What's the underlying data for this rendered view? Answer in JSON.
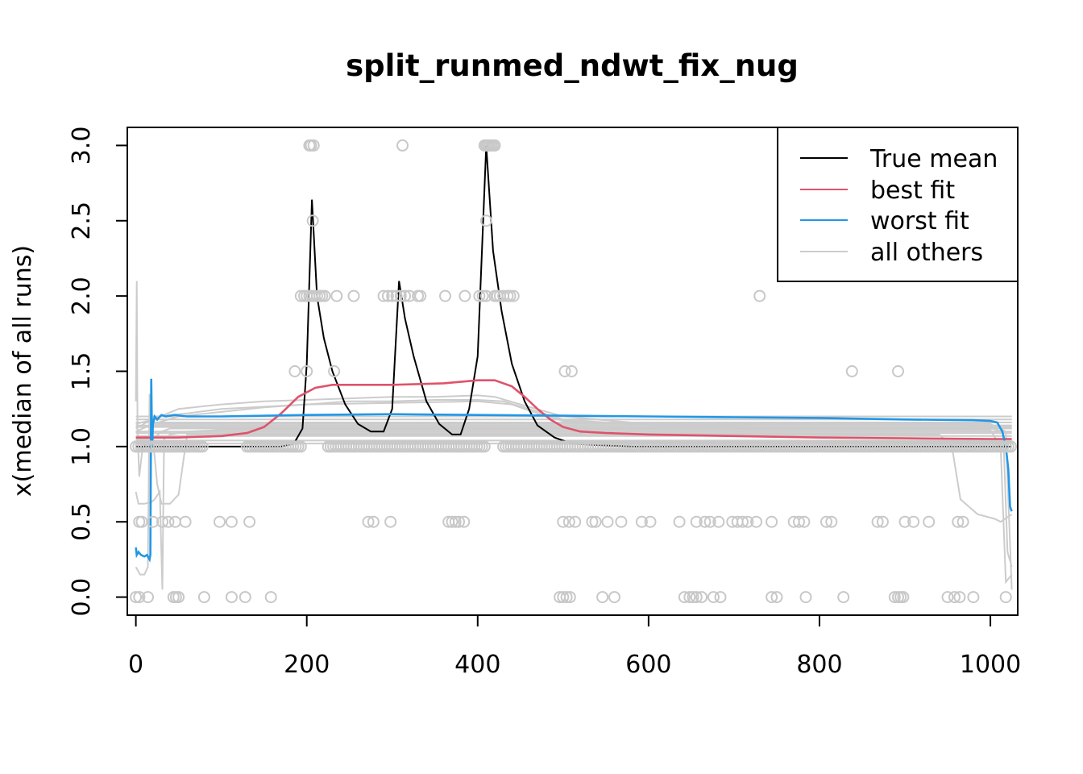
{
  "chart_data": {
    "type": "line",
    "title": "split_runmed_ndwt_fix_nug",
    "xlabel": "",
    "ylabel": "x(median of all runs)",
    "xlim": [
      -10,
      1032
    ],
    "ylim": [
      -0.12,
      3.12
    ],
    "x_ticks": [
      0,
      200,
      400,
      600,
      800,
      1000
    ],
    "y_ticks": [
      0.0,
      0.5,
      1.0,
      1.5,
      2.0,
      2.5,
      3.0
    ],
    "x_tick_labels": [
      "0",
      "200",
      "400",
      "600",
      "800",
      "1000"
    ],
    "y_tick_labels": [
      "0.0",
      "0.5",
      "1.0",
      "1.5",
      "2.0",
      "2.5",
      "3.0"
    ],
    "grid": false,
    "legend": {
      "position": "top-right",
      "entries": [
        {
          "label": "True mean",
          "color": "#000000"
        },
        {
          "label": "best fit",
          "color": "#DF536B"
        },
        {
          "label": "worst fit",
          "color": "#2297E6"
        },
        {
          "label": "all others",
          "color": "#CCCCCC"
        }
      ]
    },
    "colors": {
      "true_mean": "#000000",
      "best_fit": "#DF536B",
      "worst_fit": "#2297E6",
      "others": "#CCCCCC",
      "points": "#C8C8C8"
    },
    "series": [
      {
        "name": "True mean",
        "color": "#000000",
        "x": [
          0,
          170,
          185,
          195,
          200,
          206,
          212,
          220,
          230,
          245,
          260,
          275,
          290,
          300,
          308,
          315,
          325,
          340,
          355,
          370,
          380,
          390,
          400,
          410,
          418,
          428,
          440,
          455,
          470,
          490,
          510,
          540,
          580,
          700,
          1000,
          1025
        ],
        "y": [
          1.0,
          1.0,
          1.02,
          1.12,
          1.55,
          2.64,
          2.0,
          1.72,
          1.5,
          1.28,
          1.15,
          1.1,
          1.1,
          1.25,
          2.1,
          1.85,
          1.6,
          1.3,
          1.15,
          1.08,
          1.08,
          1.25,
          1.6,
          3.0,
          2.3,
          1.9,
          1.55,
          1.3,
          1.14,
          1.06,
          1.02,
          1.01,
          1.0,
          1.0,
          1.0,
          1.0
        ]
      },
      {
        "name": "best fit",
        "color": "#DF536B",
        "x": [
          0,
          50,
          100,
          130,
          150,
          170,
          190,
          210,
          230,
          260,
          300,
          330,
          360,
          380,
          400,
          420,
          440,
          455,
          470,
          485,
          500,
          520,
          550,
          600,
          700,
          800,
          900,
          1000,
          1025
        ],
        "y": [
          1.06,
          1.06,
          1.07,
          1.09,
          1.13,
          1.22,
          1.33,
          1.39,
          1.41,
          1.41,
          1.41,
          1.415,
          1.42,
          1.43,
          1.44,
          1.44,
          1.4,
          1.33,
          1.25,
          1.18,
          1.13,
          1.1,
          1.09,
          1.08,
          1.07,
          1.06,
          1.055,
          1.05,
          1.05
        ]
      },
      {
        "name": "worst fit",
        "color": "#2297E6",
        "x": [
          0,
          1,
          3,
          6,
          10,
          13,
          16,
          17,
          18,
          19,
          20,
          22,
          25,
          30,
          35,
          45,
          60,
          100,
          200,
          300,
          400,
          500,
          600,
          700,
          800,
          900,
          980,
          1000,
          1008,
          1014,
          1018,
          1021,
          1023,
          1025
        ],
        "y": [
          0.33,
          0.28,
          0.3,
          0.28,
          0.27,
          0.28,
          0.25,
          0.28,
          1.45,
          1.0,
          1.15,
          1.2,
          1.18,
          1.21,
          1.2,
          1.21,
          1.2,
          1.2,
          1.21,
          1.215,
          1.21,
          1.205,
          1.2,
          1.195,
          1.19,
          1.18,
          1.175,
          1.17,
          1.16,
          1.1,
          1.0,
          0.85,
          0.6,
          0.57
        ]
      }
    ],
    "others": [
      {
        "x": [
          0,
          1,
          2,
          4,
          8,
          20,
          30,
          40,
          60,
          100,
          200,
          300,
          400,
          500,
          700,
          900,
          1000,
          1015,
          1020,
          1025
        ],
        "y": [
          1.3,
          2.1,
          1.1,
          0.8,
          1.0,
          1.05,
          1.1,
          1.12,
          1.12,
          1.12,
          1.12,
          1.12,
          1.12,
          1.12,
          1.12,
          1.12,
          1.12,
          1.1,
          0.3,
          0.2
        ]
      },
      {
        "x": [
          0,
          3,
          10,
          18,
          22,
          28,
          31,
          33,
          40,
          60,
          100,
          200,
          300,
          400,
          500,
          700,
          900,
          1000,
          1012,
          1018,
          1025
        ],
        "y": [
          0.7,
          0.62,
          0.62,
          0.63,
          0.65,
          0.7,
          0.05,
          1.05,
          1.08,
          1.1,
          1.11,
          1.11,
          1.11,
          1.11,
          1.11,
          1.11,
          1.11,
          1.11,
          1.0,
          0.1,
          0.15
        ]
      },
      {
        "x": [
          0,
          5,
          10,
          14,
          16,
          20,
          30,
          60,
          100,
          200,
          300,
          400,
          500,
          700,
          900,
          1000,
          1018,
          1025
        ],
        "y": [
          0.2,
          0.15,
          0.15,
          0.2,
          1.35,
          1.15,
          1.15,
          1.15,
          1.15,
          1.15,
          1.15,
          1.15,
          1.15,
          1.15,
          1.15,
          1.15,
          1.1,
          0.05
        ]
      },
      {
        "x": [
          0,
          10,
          20,
          25,
          30,
          40,
          50,
          60,
          100,
          940,
          955,
          965,
          985,
          1005,
          1012,
          1025
        ],
        "y": [
          1.05,
          1.05,
          1.05,
          0.75,
          0.62,
          0.62,
          0.68,
          1.08,
          1.08,
          1.08,
          1.0,
          0.65,
          0.55,
          0.52,
          0.5,
          0.55
        ]
      },
      {
        "x": [
          0,
          20,
          50,
          100,
          150,
          200,
          250,
          300,
          350,
          400,
          420,
          450,
          500,
          600,
          700,
          800,
          900,
          1000,
          1025
        ],
        "y": [
          1.15,
          1.18,
          1.25,
          1.28,
          1.3,
          1.31,
          1.32,
          1.33,
          1.33,
          1.34,
          1.33,
          1.28,
          1.2,
          1.15,
          1.13,
          1.12,
          1.12,
          1.12,
          1.12
        ]
      },
      {
        "x": [
          0,
          20,
          50,
          100,
          150,
          200,
          250,
          300,
          350,
          400,
          430,
          460,
          500,
          600,
          700,
          800,
          900,
          1000,
          1025
        ],
        "y": [
          1.1,
          1.15,
          1.2,
          1.23,
          1.26,
          1.28,
          1.3,
          1.3,
          1.31,
          1.31,
          1.3,
          1.25,
          1.18,
          1.14,
          1.13,
          1.12,
          1.12,
          1.12,
          1.12
        ]
      },
      {
        "x": [
          0,
          25,
          60,
          100,
          200,
          300,
          400,
          440,
          470,
          500,
          600,
          1000,
          1025
        ],
        "y": [
          1.12,
          1.2,
          1.22,
          1.25,
          1.28,
          1.29,
          1.3,
          1.28,
          1.22,
          1.17,
          1.15,
          1.14,
          1.14
        ]
      },
      {
        "x": [
          0,
          1025
        ],
        "y": [
          1.2,
          1.2
        ]
      },
      {
        "x": [
          0,
          1025
        ],
        "y": [
          1.18,
          1.18
        ]
      },
      {
        "x": [
          0,
          1025
        ],
        "y": [
          1.16,
          1.16
        ]
      },
      {
        "x": [
          0,
          1025
        ],
        "y": [
          1.14,
          1.14
        ]
      },
      {
        "x": [
          0,
          1025
        ],
        "y": [
          1.13,
          1.13
        ]
      },
      {
        "x": [
          0,
          1025
        ],
        "y": [
          1.1,
          1.1
        ]
      },
      {
        "x": [
          0,
          1025
        ],
        "y": [
          1.09,
          1.09
        ]
      },
      {
        "x": [
          0,
          1025
        ],
        "y": [
          1.07,
          1.07
        ]
      },
      {
        "x": [
          0,
          1025
        ],
        "y": [
          1.04,
          1.04
        ]
      },
      {
        "x": [
          0,
          1025
        ],
        "y": [
          1.02,
          1.02
        ]
      }
    ],
    "points": [
      {
        "x": [
          203,
          205,
          208,
          312,
          408,
          410,
          412,
          414,
          416,
          418,
          420
        ],
        "y": 3.0
      },
      {
        "x": [
          207,
          410
        ],
        "y": 2.5
      },
      {
        "x": [
          193,
          197,
          200,
          203,
          206,
          209,
          212,
          215,
          218,
          221,
          235,
          255,
          290,
          295,
          300,
          305,
          310,
          315,
          320,
          330,
          333,
          362,
          385,
          402,
          406,
          410,
          420,
          423,
          426,
          430,
          435,
          438,
          442,
          730
        ],
        "y": 2.0
      },
      {
        "x": [
          186,
          200,
          232,
          502,
          510,
          838,
          892
        ],
        "y": 1.5
      },
      {
        "x": [
          4,
          7,
          20,
          31,
          38,
          46,
          58,
          98,
          112,
          133,
          272,
          278,
          298,
          366,
          370,
          374,
          378,
          384,
          500,
          507,
          514,
          534,
          538,
          552,
          568,
          592,
          602,
          636,
          656,
          666,
          672,
          682,
          698,
          704,
          710,
          716,
          726,
          744,
          770,
          776,
          782,
          808,
          814,
          868,
          874,
          900,
          910,
          928,
          962,
          968
        ],
        "y": 0.5
      },
      {
        "x": [
          0,
          4,
          14,
          44,
          47,
          50,
          80,
          112,
          128,
          158,
          496,
          500,
          504,
          508,
          546,
          560,
          642,
          648,
          652,
          656,
          662,
          676,
          684,
          744,
          750,
          784,
          828,
          888,
          892,
          895,
          898,
          950,
          958,
          964,
          980,
          1018
        ],
        "y": 0.0
      }
    ]
  }
}
